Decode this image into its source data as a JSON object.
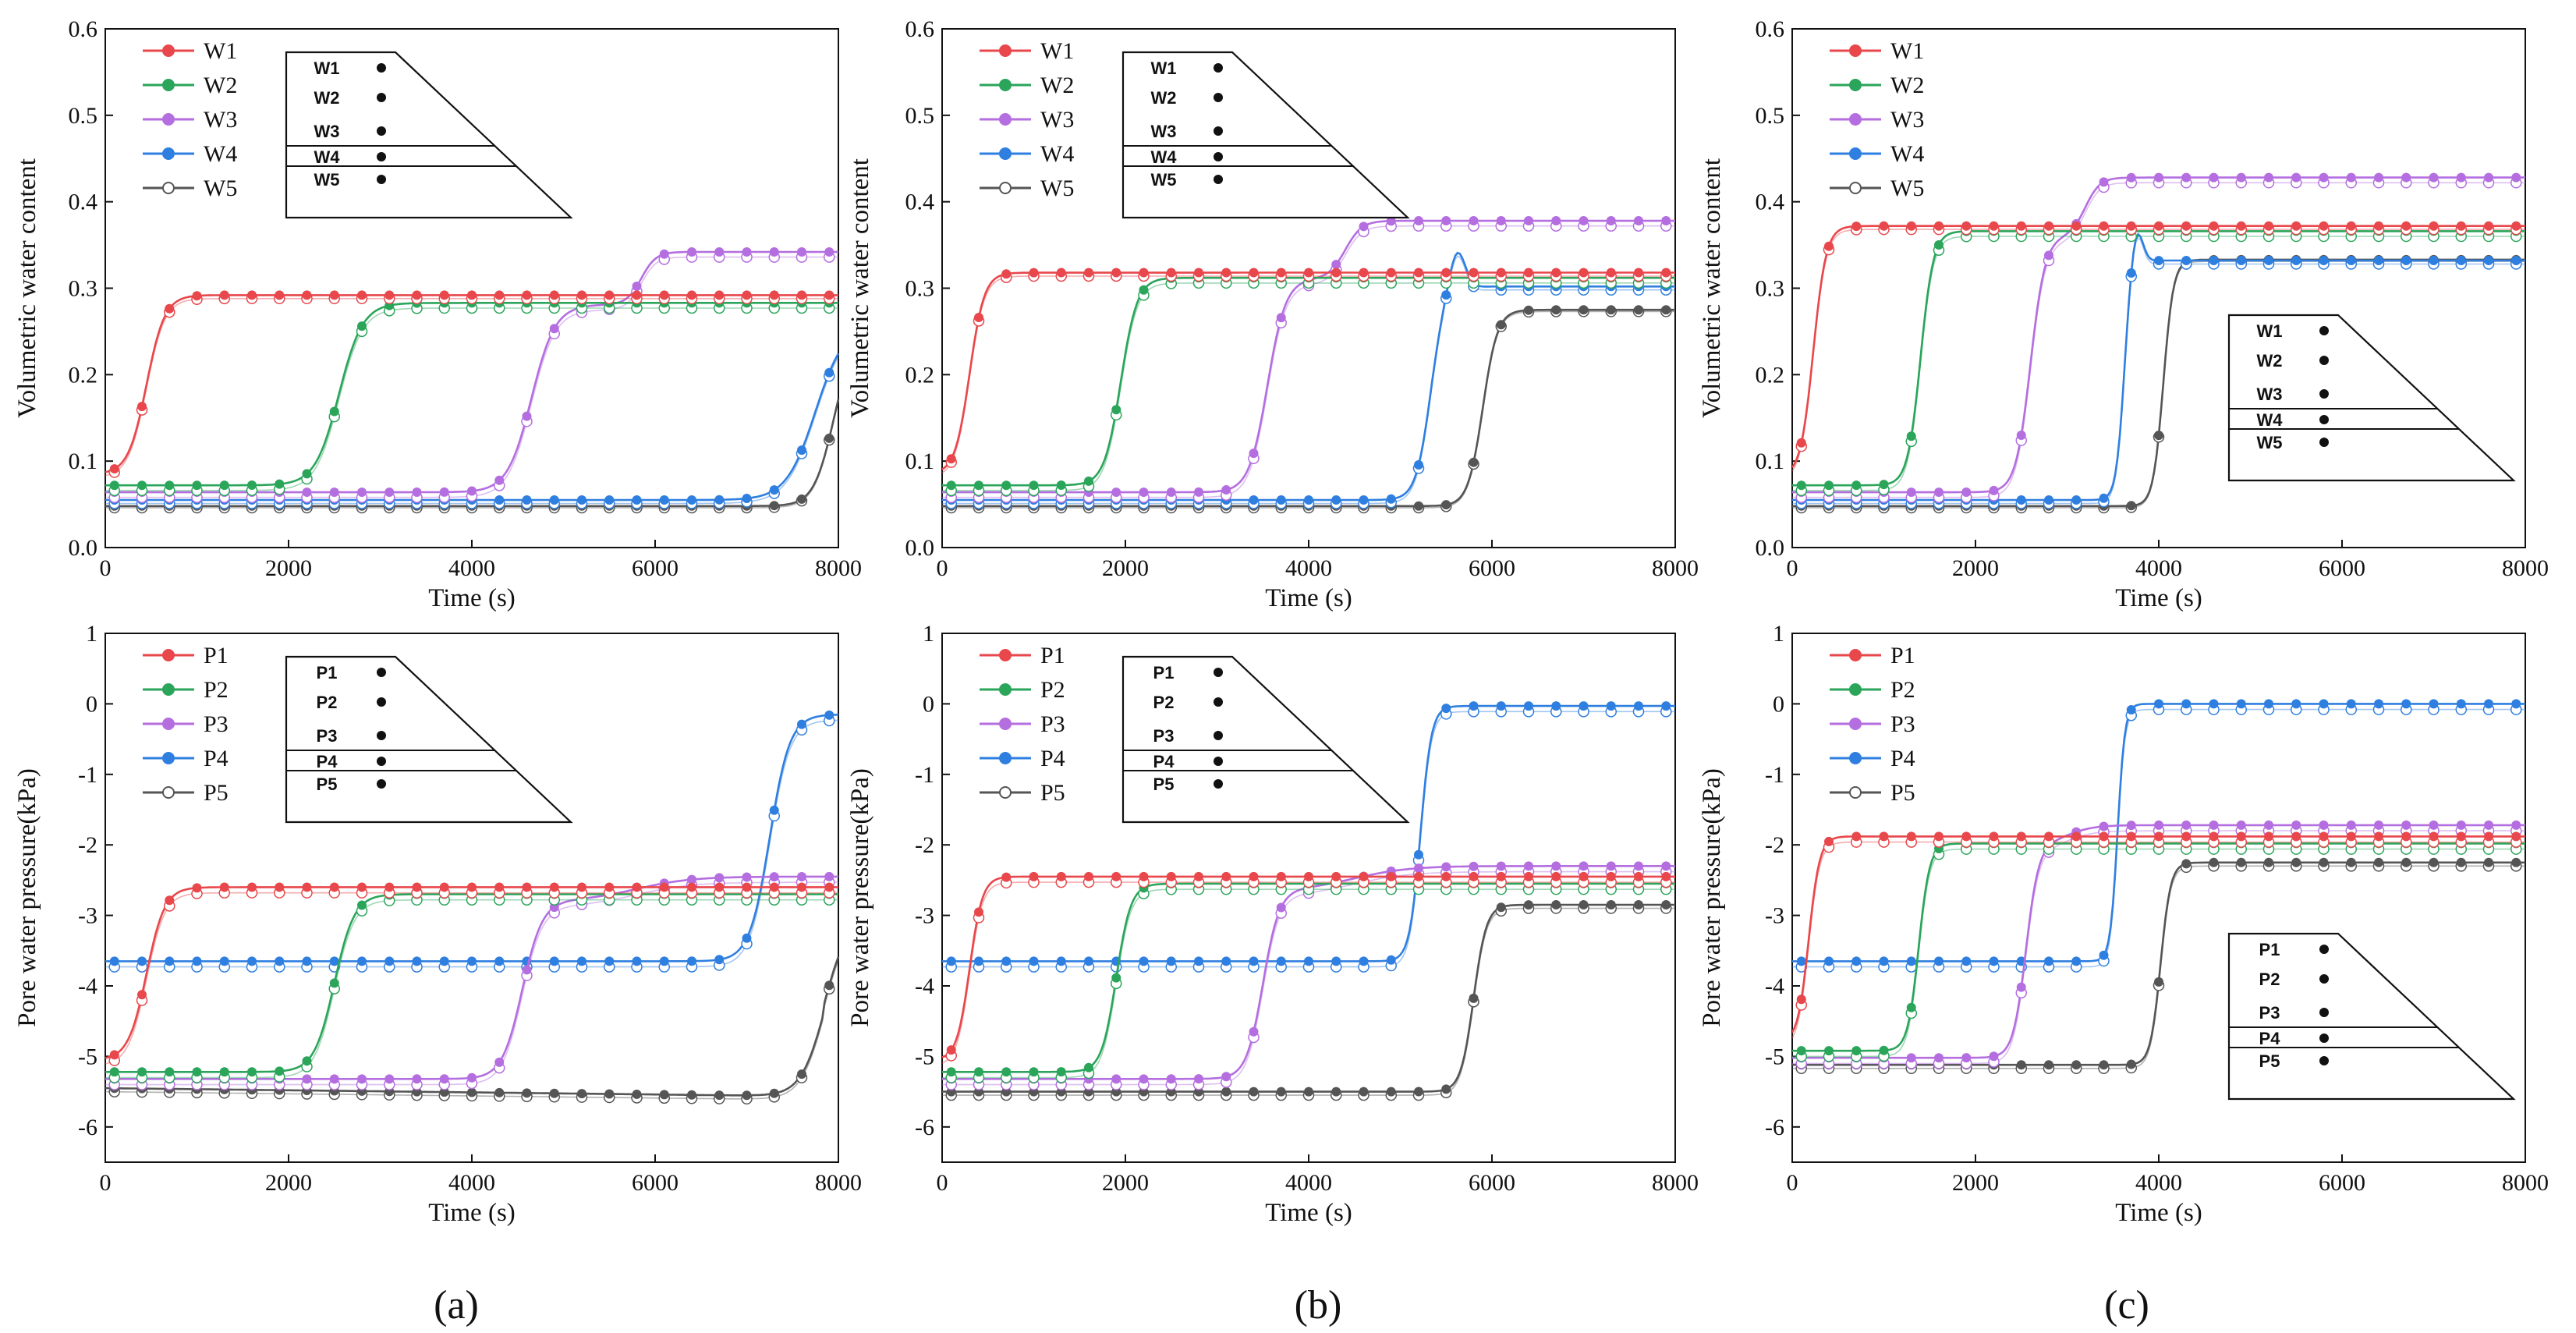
{
  "chart_data": [
    {
      "id": "a-top",
      "type": "line",
      "xlabel": "Time (s)",
      "ylabel": "Volumetric water content",
      "xlim": [
        0,
        8000
      ],
      "ylim": [
        0,
        0.6
      ],
      "xticks": [
        0,
        2000,
        4000,
        6000,
        8000
      ],
      "xtick_labels": [
        "0",
        "2000",
        "4000",
        "6000",
        "8000"
      ],
      "yticks": [
        0,
        0.1,
        0.2,
        0.3,
        0.4,
        0.5,
        0.6
      ],
      "ytick_labels": [
        "0.0",
        "0.1",
        "0.2",
        "0.3",
        "0.4",
        "0.5",
        "0.6"
      ],
      "legend_position": "top-left",
      "series": [
        {
          "name": "W1",
          "color": "#e8474b",
          "start": 0.085,
          "end": 0.292,
          "t0": 450,
          "w": 100,
          "hollow_offset": -0.004
        },
        {
          "name": "W2",
          "color": "#2aa55a",
          "start": 0.072,
          "end": 0.283,
          "t0": 2550,
          "w": 130,
          "hollow_offset": -0.006
        },
        {
          "name": "W3",
          "color": "#b46ee0",
          "start": 0.064,
          "end": 0.281,
          "t0": 4650,
          "w": 130,
          "step2_t0": 5850,
          "step2_w": 80,
          "step2_end": 0.342,
          "hollow_offset": -0.006
        },
        {
          "name": "W4",
          "color": "#2f7fe0",
          "start": 0.055,
          "end": 0.26,
          "t0": 7750,
          "w": 160,
          "hollow_offset": -0.004
        },
        {
          "name": "W5",
          "color": "#555555",
          "start": 0.048,
          "end": 0.25,
          "t0": 7950,
          "w": 110,
          "drift": 0,
          "hollow_offset": -0.002
        }
      ],
      "inset": {
        "labels": [
          "W1",
          "W2",
          "W3",
          "W4",
          "W5"
        ],
        "placement": "top-center"
      }
    },
    {
      "id": "b-top",
      "type": "line",
      "xlabel": "Time (s)",
      "ylabel": "Volumetric water content",
      "xlim": [
        0,
        8000
      ],
      "ylim": [
        0,
        0.6
      ],
      "xticks": [
        0,
        2000,
        4000,
        6000,
        8000
      ],
      "xtick_labels": [
        "0",
        "2000",
        "4000",
        "6000",
        "8000"
      ],
      "yticks": [
        0,
        0.1,
        0.2,
        0.3,
        0.4,
        0.5,
        0.6
      ],
      "ytick_labels": [
        "0.0",
        "0.1",
        "0.2",
        "0.3",
        "0.4",
        "0.5",
        "0.6"
      ],
      "legend_position": "top-left",
      "series": [
        {
          "name": "W1",
          "color": "#e8474b",
          "start": 0.085,
          "end": 0.318,
          "t0": 300,
          "w": 80,
          "hollow_offset": -0.004
        },
        {
          "name": "W2",
          "color": "#2aa55a",
          "start": 0.072,
          "end": 0.312,
          "t0": 1950,
          "w": 90,
          "hollow_offset": -0.006
        },
        {
          "name": "W3",
          "color": "#b46ee0",
          "start": 0.064,
          "end": 0.311,
          "t0": 3550,
          "w": 100,
          "step2_t0": 4400,
          "step2_w": 90,
          "step2_end": 0.378,
          "hollow_offset": -0.006
        },
        {
          "name": "W4",
          "color": "#2f7fe0",
          "start": 0.055,
          "end": 0.302,
          "t0": 5330,
          "w": 80,
          "bump": 0.045,
          "bump_t": 5620,
          "bump_w": 120,
          "hollow_offset": -0.004
        },
        {
          "name": "W5",
          "color": "#555555",
          "start": 0.048,
          "end": 0.275,
          "t0": 5900,
          "w": 80,
          "hollow_offset": -0.002
        }
      ],
      "inset": {
        "labels": [
          "W1",
          "W2",
          "W3",
          "W4",
          "W5"
        ],
        "placement": "top-center"
      }
    },
    {
      "id": "c-top",
      "type": "line",
      "xlabel": "Time (s)",
      "ylabel": "Volumetric water content",
      "xlim": [
        0,
        8000
      ],
      "ylim": [
        0,
        0.6
      ],
      "xticks": [
        0,
        2000,
        4000,
        6000,
        8000
      ],
      "xtick_labels": [
        "0",
        "2000",
        "4000",
        "6000",
        "8000"
      ],
      "yticks": [
        0,
        0.1,
        0.2,
        0.3,
        0.4,
        0.5,
        0.6
      ],
      "ytick_labels": [
        "0.0",
        "0.1",
        "0.2",
        "0.3",
        "0.4",
        "0.5",
        "0.6"
      ],
      "legend_position": "top-left",
      "series": [
        {
          "name": "W1",
          "color": "#e8474b",
          "start": 0.082,
          "end": 0.372,
          "t0": 230,
          "w": 70,
          "hollow_offset": -0.004
        },
        {
          "name": "W2",
          "color": "#2aa55a",
          "start": 0.072,
          "end": 0.366,
          "t0": 1400,
          "w": 70,
          "hollow_offset": -0.006
        },
        {
          "name": "W3",
          "color": "#b46ee0",
          "start": 0.064,
          "end": 0.36,
          "t0": 2600,
          "w": 80,
          "step2_t0": 3200,
          "step2_w": 80,
          "step2_end": 0.428,
          "hollow_offset": -0.006
        },
        {
          "name": "W4",
          "color": "#2f7fe0",
          "start": 0.055,
          "end": 0.332,
          "t0": 3620,
          "w": 45,
          "bump": 0.04,
          "bump_t": 3760,
          "bump_w": 90,
          "hollow_offset": -0.004
        },
        {
          "name": "W5",
          "color": "#555555",
          "start": 0.048,
          "end": 0.333,
          "t0": 4050,
          "w": 55,
          "hollow_offset": -0.002
        }
      ],
      "inset": {
        "labels": [
          "W1",
          "W2",
          "W3",
          "W4",
          "W5"
        ],
        "placement": "bottom-right"
      }
    },
    {
      "id": "a-bottom",
      "type": "line",
      "xlabel": "Time (s)",
      "ylabel": "Pore water pressure(kPa)",
      "xlim": [
        0,
        8000
      ],
      "ylim": [
        -6.5,
        1
      ],
      "xticks": [
        0,
        2000,
        4000,
        6000,
        8000
      ],
      "xtick_labels": [
        "0",
        "2000",
        "4000",
        "6000",
        "8000"
      ],
      "yticks": [
        -6,
        -5,
        -4,
        -3,
        -2,
        -1,
        0,
        1
      ],
      "ytick_labels": [
        "-6",
        "-5",
        "-4",
        "-3",
        "-2",
        "-1",
        "0",
        "1"
      ],
      "legend_position": "top-left",
      "series": [
        {
          "name": "P1",
          "color": "#e8474b",
          "start": -5.05,
          "end": -2.6,
          "t0": 450,
          "w": 100,
          "hollow_offset": -0.08
        },
        {
          "name": "P2",
          "color": "#2aa55a",
          "start": -5.22,
          "end": -2.7,
          "t0": 2500,
          "w": 110,
          "hollow_offset": -0.08
        },
        {
          "name": "P3",
          "color": "#b46ee0",
          "start": -5.32,
          "end": -2.8,
          "t0": 4550,
          "w": 110,
          "step2_t0": 5800,
          "step2_w": 300,
          "step2_end": -2.45,
          "hollow_offset": -0.08
        },
        {
          "name": "P4",
          "color": "#2f7fe0",
          "start": -3.65,
          "end": -0.15,
          "t0": 7250,
          "w": 110,
          "hollow_offset": -0.08
        },
        {
          "name": "P5",
          "color": "#555555",
          "start": -5.45,
          "end": -3.0,
          "t0": 7850,
          "w": 130,
          "drift": -0.12,
          "hollow_offset": -0.05
        }
      ],
      "inset": {
        "labels": [
          "P1",
          "P2",
          "P3",
          "P4",
          "P5"
        ],
        "placement": "top-center"
      }
    },
    {
      "id": "b-bottom",
      "type": "line",
      "xlabel": "Time (s)",
      "ylabel": "Pore water pressure(kPa)",
      "xlim": [
        0,
        8000
      ],
      "ylim": [
        -6.5,
        1
      ],
      "xticks": [
        0,
        2000,
        4000,
        6000,
        8000
      ],
      "xtick_labels": [
        "0",
        "2000",
        "4000",
        "6000",
        "8000"
      ],
      "yticks": [
        -6,
        -5,
        -4,
        -3,
        -2,
        -1,
        0,
        1
      ],
      "ytick_labels": [
        "-6",
        "-5",
        "-4",
        "-3",
        "-2",
        "-1",
        "0",
        "1"
      ],
      "legend_position": "top-left",
      "series": [
        {
          "name": "P1",
          "color": "#e8474b",
          "start": -5.05,
          "end": -2.45,
          "t0": 300,
          "w": 70,
          "hollow_offset": -0.08
        },
        {
          "name": "P2",
          "color": "#2aa55a",
          "start": -5.22,
          "end": -2.55,
          "t0": 1900,
          "w": 80,
          "hollow_offset": -0.08
        },
        {
          "name": "P3",
          "color": "#b46ee0",
          "start": -5.32,
          "end": -2.65,
          "t0": 3500,
          "w": 90,
          "step2_t0": 4500,
          "step2_w": 300,
          "step2_end": -2.3,
          "hollow_offset": -0.08
        },
        {
          "name": "P4",
          "color": "#2f7fe0",
          "start": -3.65,
          "end": -0.03,
          "t0": 5220,
          "w": 60,
          "hollow_offset": -0.08
        },
        {
          "name": "P5",
          "color": "#555555",
          "start": -5.5,
          "end": -2.85,
          "t0": 5800,
          "w": 70,
          "hollow_offset": -0.05
        }
      ],
      "inset": {
        "labels": [
          "P1",
          "P2",
          "P3",
          "P4",
          "P5"
        ],
        "placement": "top-center"
      }
    },
    {
      "id": "c-bottom",
      "type": "line",
      "xlabel": "Time (s)",
      "ylabel": "Pore water pressure(kPa)",
      "xlim": [
        0,
        8000
      ],
      "ylim": [
        -6.5,
        1
      ],
      "xticks": [
        0,
        2000,
        4000,
        6000,
        8000
      ],
      "xtick_labels": [
        "0",
        "2000",
        "4000",
        "6000",
        "8000"
      ],
      "yticks": [
        -6,
        -5,
        -4,
        -3,
        -2,
        -1,
        0,
        1
      ],
      "ytick_labels": [
        "-6",
        "-5",
        "-4",
        "-3",
        "-2",
        "-1",
        "0",
        "1"
      ],
      "legend_position": "top-left",
      "series": [
        {
          "name": "P1",
          "color": "#e8474b",
          "start": -4.8,
          "end": -1.88,
          "t0": 180,
          "w": 60,
          "hollow_offset": -0.08
        },
        {
          "name": "P2",
          "color": "#2aa55a",
          "start": -4.92,
          "end": -1.98,
          "t0": 1380,
          "w": 60,
          "hollow_offset": -0.08
        },
        {
          "name": "P3",
          "color": "#b46ee0",
          "start": -5.02,
          "end": -2.0,
          "t0": 2550,
          "w": 70,
          "step2_t0": 3000,
          "step2_w": 150,
          "step2_end": -1.72,
          "hollow_offset": -0.08
        },
        {
          "name": "P4",
          "color": "#2f7fe0",
          "start": -3.65,
          "end": 0.0,
          "t0": 3550,
          "w": 40,
          "hollow_offset": -0.08
        },
        {
          "name": "P5",
          "color": "#555555",
          "start": -5.12,
          "end": -2.25,
          "t0": 4020,
          "w": 55,
          "hollow_offset": -0.05
        }
      ],
      "inset": {
        "labels": [
          "P1",
          "P2",
          "P3",
          "P4",
          "P5"
        ],
        "placement": "bottom-right"
      }
    }
  ],
  "panel_labels": [
    "(a)",
    "(b)",
    "(c)"
  ]
}
